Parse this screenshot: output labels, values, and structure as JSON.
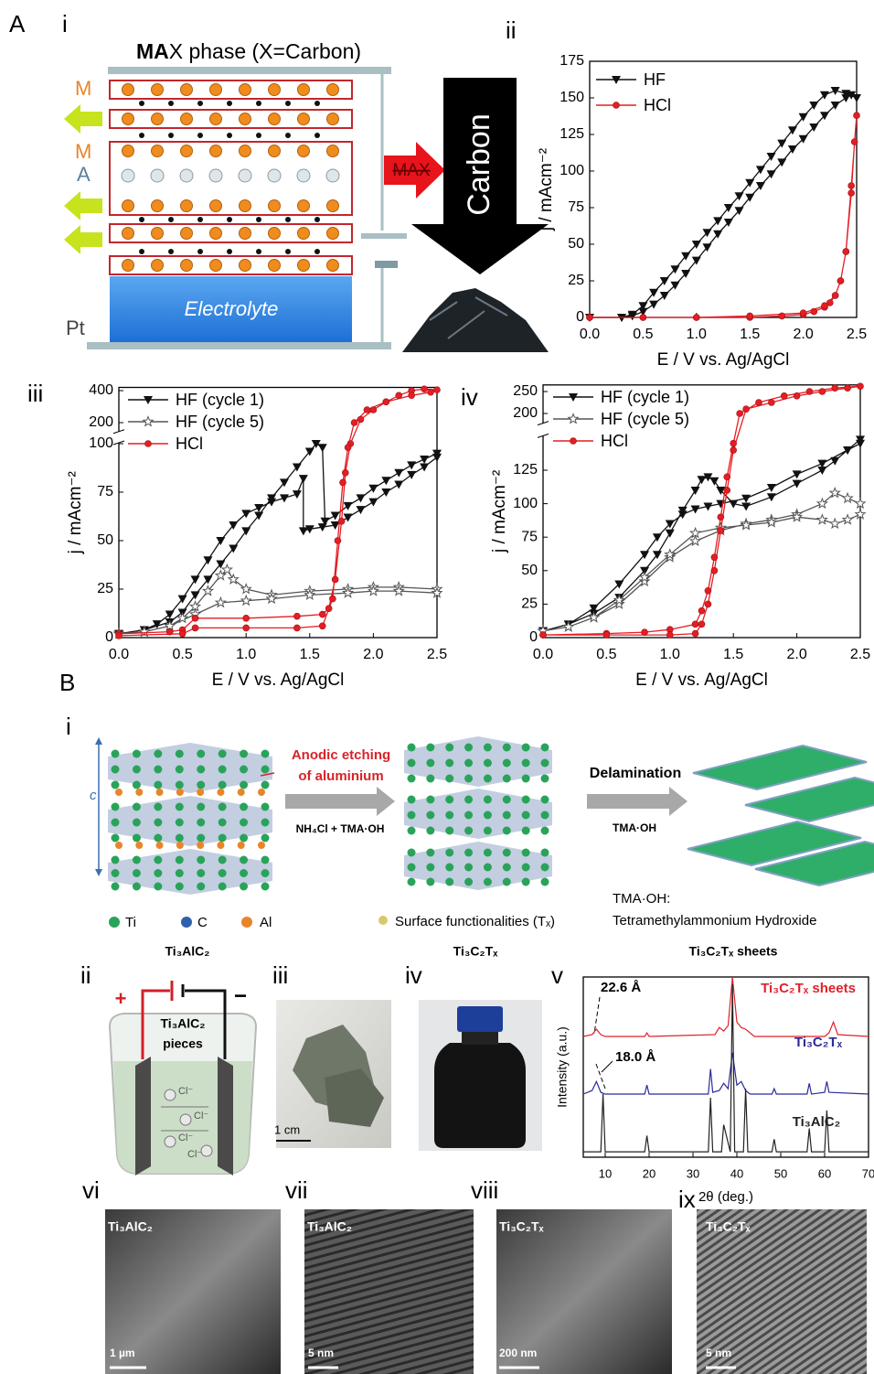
{
  "panel_labels": [
    "A",
    "i",
    "ii",
    "iii",
    "iv",
    "B",
    "i",
    "ii",
    "iii",
    "iv",
    "v",
    "vi",
    "vii",
    "viii",
    "ix"
  ],
  "schematic": {
    "title_bold": "MA",
    "title_rest": "X phase (X=Carbon)",
    "layer_labels": [
      "M",
      "M",
      "A"
    ],
    "electrode": "Pt",
    "electrolyte": "Electrolyte",
    "arrow": "MAX",
    "product": "Carbon"
  },
  "process": {
    "step1": [
      "Anodic etching",
      "of aluminium"
    ],
    "reagent1": "NH₄Cl + TMA·OH",
    "step2": "Delamination",
    "reagent2": "TMA·OH",
    "axis": "c",
    "legend": [
      "Ti",
      "C",
      "Al",
      "Surface functionalities (Tₓ)"
    ],
    "note": [
      "TMA·OH:",
      "Tetramethylammonium Hydroxide"
    ],
    "captions": [
      "Ti₃AlC₂",
      "Ti₃C₂Tₓ",
      "Ti₃C₂Tₓ  sheets"
    ]
  },
  "cell": {
    "plus": "+",
    "minus": "−",
    "electrode": [
      "Ti₃AlC₂",
      "pieces"
    ],
    "ion": "Cl⁻"
  },
  "photo": {
    "scale": "1 cm"
  },
  "micrographs": [
    {
      "label": "Ti₃AlC₂",
      "scale": "1 µm"
    },
    {
      "label": "Ti₃AlC₂",
      "scale": "5 nm"
    },
    {
      "label": "Ti₃C₂Tₓ",
      "scale": "200 nm"
    },
    {
      "label": "Ti₃C₂Tₓ",
      "scale": "5 nm"
    }
  ],
  "chart_data": [
    {
      "type": "line",
      "xlabel": "E / V vs. Ag/AgCl",
      "ylabel": "j / mAcm⁻²",
      "xlim": [
        0,
        2.5
      ],
      "ylim": [
        0,
        175
      ],
      "xticks": [
        {
          "value": 0,
          "label": "0.0"
        },
        0.5,
        {
          "value": 1,
          "label": "1.0"
        },
        1.5,
        {
          "value": 2,
          "label": "2.0"
        },
        2.5
      ],
      "yticks": [
        0,
        25,
        50,
        75,
        100,
        125,
        150,
        175
      ],
      "series": [
        {
          "name": "HF",
          "color": "#111111",
          "marker": "triangle-down",
          "filled": true,
          "x": [
            0,
            0.3,
            0.4,
            0.5,
            0.6,
            0.7,
            0.8,
            0.9,
            1.0,
            1.1,
            1.2,
            1.3,
            1.4,
            1.5,
            1.6,
            1.7,
            1.8,
            1.9,
            2.0,
            2.1,
            2.2,
            2.3,
            2.4,
            2.5,
            2.45,
            2.4,
            2.3,
            2.2,
            2.1,
            2.0,
            1.9,
            1.8,
            1.7,
            1.6,
            1.5,
            1.4,
            1.3,
            1.2,
            1.1,
            1.0,
            0.9,
            0.8,
            0.7,
            0.6,
            0.5,
            0.4,
            0.3
          ],
          "values": [
            0,
            0,
            2,
            8,
            17,
            25,
            33,
            42,
            50,
            58,
            66,
            75,
            83,
            92,
            101,
            110,
            119,
            128,
            137,
            145,
            152,
            155,
            153,
            150,
            152,
            150,
            145,
            138,
            130,
            122,
            115,
            106,
            98,
            90,
            82,
            73,
            65,
            57,
            48,
            39,
            30,
            22,
            15,
            9,
            4,
            1,
            0
          ]
        },
        {
          "name": "HCl",
          "color": "#e31e24",
          "marker": "circle",
          "filled": true,
          "x": [
            0,
            0.5,
            1.0,
            1.5,
            1.8,
            2.0,
            2.1,
            2.2,
            2.25,
            2.3,
            2.35,
            2.4,
            2.45,
            2.5,
            2.48,
            2.45,
            2.4,
            2.35,
            2.3,
            2.2,
            2.0,
            1.5,
            1.0,
            0.5,
            0
          ],
          "values": [
            0,
            0,
            0,
            0,
            1,
            2,
            4,
            7,
            10,
            15,
            25,
            45,
            90,
            138,
            120,
            85,
            45,
            25,
            15,
            8,
            3,
            1,
            0,
            0,
            0
          ]
        }
      ]
    },
    {
      "type": "line",
      "xlabel": "E / V vs. Ag/AgCl",
      "ylabel": "j / mAcm⁻²",
      "xlim": [
        0,
        2.5
      ],
      "ylim": [
        0,
        420
      ],
      "axis_break": [
        100,
        150
      ],
      "xticks": [
        {
          "value": 0,
          "label": "0.0"
        },
        0.5,
        {
          "value": 1,
          "label": "1.0"
        },
        1.5,
        {
          "value": 2,
          "label": "2.0"
        },
        2.5
      ],
      "yticks": [
        0,
        25,
        50,
        75,
        100,
        200,
        400
      ],
      "series": [
        {
          "name": "HF (cycle 1)",
          "color": "#111111",
          "marker": "triangle-down",
          "filled": true,
          "x": [
            0,
            0.2,
            0.4,
            0.5,
            0.6,
            0.7,
            0.8,
            0.9,
            1.0,
            1.1,
            1.2,
            1.3,
            1.4,
            1.5,
            1.55,
            1.6,
            1.62,
            1.7,
            1.8,
            1.9,
            2.0,
            2.1,
            2.2,
            2.3,
            2.4,
            2.5,
            2.5,
            2.4,
            2.3,
            2.2,
            2.1,
            2.0,
            1.9,
            1.8,
            1.7,
            1.6,
            1.5,
            1.45,
            1.45,
            1.4,
            1.3,
            1.2,
            1.1,
            1.0,
            0.9,
            0.8,
            0.7,
            0.6,
            0.5,
            0.4,
            0.3,
            0.2,
            0
          ],
          "values": [
            2,
            4,
            8,
            13,
            22,
            30,
            38,
            46,
            55,
            63,
            72,
            80,
            88,
            96,
            100,
            98,
            60,
            63,
            68,
            72,
            77,
            81,
            85,
            89,
            92,
            95,
            93,
            88,
            84,
            79,
            75,
            70,
            66,
            62,
            58,
            57,
            56,
            55,
            82,
            74,
            72,
            70,
            67,
            64,
            58,
            50,
            40,
            30,
            20,
            12,
            7,
            4,
            2
          ]
        },
        {
          "name": "HF (cycle 5)",
          "color": "#555555",
          "marker": "star",
          "filled": false,
          "x": [
            0,
            0.2,
            0.4,
            0.5,
            0.6,
            0.7,
            0.8,
            0.85,
            0.9,
            1.0,
            1.2,
            1.5,
            1.8,
            2.0,
            2.2,
            2.5,
            2.5,
            2.2,
            2.0,
            1.8,
            1.5,
            1.2,
            1.0,
            0.8,
            0.6,
            0.4,
            0.2,
            0
          ],
          "values": [
            2,
            3,
            6,
            10,
            16,
            24,
            32,
            35,
            30,
            25,
            22,
            24,
            25,
            26,
            26,
            25,
            23,
            24,
            24,
            23,
            22,
            20,
            19,
            18,
            12,
            6,
            3,
            2
          ]
        },
        {
          "name": "HCl",
          "color": "#e31e24",
          "marker": "circle",
          "filled": true,
          "x": [
            0,
            0.4,
            0.5,
            0.6,
            1.0,
            1.4,
            1.6,
            1.65,
            1.7,
            1.75,
            1.78,
            1.82,
            1.9,
            2.0,
            2.1,
            2.2,
            2.3,
            2.4,
            2.5,
            2.45,
            2.3,
            2.1,
            1.95,
            1.85,
            1.8,
            1.76,
            1.72,
            1.68,
            1.6,
            1.4,
            1.0,
            0.6,
            0.5,
            0
          ],
          "values": [
            2,
            3,
            4,
            10,
            10,
            11,
            12,
            15,
            30,
            60,
            85,
            100,
            220,
            280,
            330,
            370,
            400,
            410,
            405,
            390,
            370,
            330,
            280,
            200,
            98,
            80,
            50,
            20,
            6,
            5,
            5,
            5,
            2,
            1
          ]
        }
      ]
    },
    {
      "type": "line",
      "xlabel": "E / V vs. Ag/AgCl",
      "ylabel": "j / mAcm⁻²",
      "xlim": [
        0,
        2.5
      ],
      "ylim": [
        0,
        265
      ],
      "axis_break": [
        150,
        180
      ],
      "xticks": [
        {
          "value": 0,
          "label": "0.0"
        },
        0.5,
        {
          "value": 1,
          "label": "1.0"
        },
        1.5,
        {
          "value": 2,
          "label": "2.0"
        },
        2.5
      ],
      "yticks": [
        0,
        25,
        50,
        75,
        100,
        125,
        200,
        250
      ],
      "series": [
        {
          "name": "HF (cycle 1)",
          "color": "#111111",
          "marker": "triangle-down",
          "filled": true,
          "x": [
            0,
            0.2,
            0.4,
            0.6,
            0.8,
            0.9,
            1.0,
            1.1,
            1.2,
            1.25,
            1.3,
            1.35,
            1.4,
            1.5,
            1.6,
            1.8,
            2.0,
            2.2,
            2.3,
            2.4,
            2.5,
            2.5,
            2.4,
            2.2,
            2.0,
            1.8,
            1.6,
            1.4,
            1.3,
            1.2,
            1.1,
            1.0,
            0.9,
            0.8,
            0.6,
            0.4,
            0.2,
            0
          ],
          "values": [
            5,
            10,
            18,
            30,
            50,
            62,
            78,
            95,
            110,
            118,
            120,
            117,
            110,
            100,
            98,
            105,
            115,
            125,
            132,
            140,
            148,
            145,
            140,
            130,
            122,
            112,
            104,
            100,
            98,
            96,
            92,
            85,
            75,
            62,
            40,
            22,
            10,
            5
          ]
        },
        {
          "name": "HF (cycle 5)",
          "color": "#555555",
          "marker": "star",
          "filled": false,
          "x": [
            0,
            0.2,
            0.4,
            0.6,
            0.8,
            1.0,
            1.2,
            1.4,
            1.6,
            1.8,
            2.0,
            2.2,
            2.3,
            2.4,
            2.5,
            2.5,
            2.4,
            2.3,
            2.2,
            2.0,
            1.8,
            1.6,
            1.4,
            1.2,
            1.0,
            0.8,
            0.6,
            0.4,
            0.2,
            0
          ],
          "values": [
            5,
            8,
            15,
            25,
            42,
            60,
            72,
            80,
            85,
            88,
            92,
            100,
            108,
            104,
            100,
            92,
            88,
            85,
            88,
            90,
            86,
            84,
            82,
            78,
            62,
            45,
            28,
            15,
            8,
            5
          ]
        },
        {
          "name": "HCl",
          "color": "#e31e24",
          "marker": "circle",
          "filled": true,
          "x": [
            0,
            0.5,
            0.8,
            1.0,
            1.2,
            1.25,
            1.3,
            1.35,
            1.4,
            1.45,
            1.5,
            1.55,
            1.7,
            1.9,
            2.1,
            2.3,
            2.5,
            2.4,
            2.2,
            2.0,
            1.8,
            1.6,
            1.5,
            1.45,
            1.4,
            1.35,
            1.3,
            1.25,
            1.2,
            1.0,
            0.5,
            0
          ],
          "values": [
            2,
            3,
            4,
            6,
            10,
            20,
            35,
            60,
            90,
            120,
            145,
            200,
            225,
            240,
            250,
            258,
            262,
            258,
            250,
            240,
            225,
            210,
            140,
            110,
            80,
            50,
            25,
            10,
            3,
            2,
            2,
            2
          ]
        }
      ]
    },
    {
      "type": "line",
      "xlabel": "2θ (deg.)",
      "ylabel": "Intensity (a.u.)",
      "xlim": [
        5,
        70
      ],
      "ylim": [
        0,
        100
      ],
      "xticks": [
        10,
        20,
        30,
        40,
        50,
        60,
        70
      ],
      "annotations": [
        "22.6 Å",
        "18.0 Å"
      ],
      "series": [
        {
          "name": "Ti₃C₂Tₓ sheets",
          "color": "#e0212b",
          "x": [
            5,
            7,
            8,
            9,
            10,
            19,
            19.5,
            20,
            35,
            36,
            37,
            38,
            39,
            40,
            41,
            42,
            44,
            60,
            61,
            62,
            63,
            70
          ],
          "values": [
            67,
            68,
            71,
            68,
            67,
            67,
            69,
            67,
            68,
            72,
            70,
            73,
            100,
            75,
            72,
            71,
            67,
            67,
            69,
            75,
            68,
            67
          ]
        },
        {
          "name": "Ti₃C₂Tₓ",
          "color": "#2b2b9a",
          "x": [
            5,
            7,
            8,
            9,
            10,
            19,
            19.5,
            20,
            33.5,
            34,
            34.5,
            36,
            37,
            38,
            39,
            40,
            41,
            42,
            43,
            48,
            48.5,
            49,
            56,
            56.5,
            57,
            60,
            60.5,
            61,
            70
          ],
          "values": [
            35,
            37,
            42,
            36,
            35,
            35,
            40,
            35,
            35,
            49,
            36,
            37,
            41,
            38,
            58,
            40,
            42,
            37,
            35,
            35,
            38,
            35,
            35,
            41,
            35,
            36,
            42,
            36,
            35
          ]
        },
        {
          "name": "Ti₃AlC₂",
          "color": "#222222",
          "x": [
            5,
            9,
            9.5,
            10,
            10.5,
            19,
            19.5,
            20,
            33.5,
            34,
            34.5,
            36.5,
            37,
            38.5,
            39,
            39.5,
            41.5,
            42,
            42.5,
            48,
            48.5,
            49,
            56,
            56.5,
            57,
            60,
            60.5,
            61,
            66,
            70
          ],
          "values": [
            3,
            3,
            35,
            3,
            3,
            3,
            12,
            3,
            3,
            33,
            3,
            3,
            18,
            3,
            96,
            3,
            3,
            38,
            3,
            3,
            10,
            3,
            3,
            16,
            3,
            3,
            26,
            3,
            3,
            3
          ]
        }
      ]
    }
  ]
}
